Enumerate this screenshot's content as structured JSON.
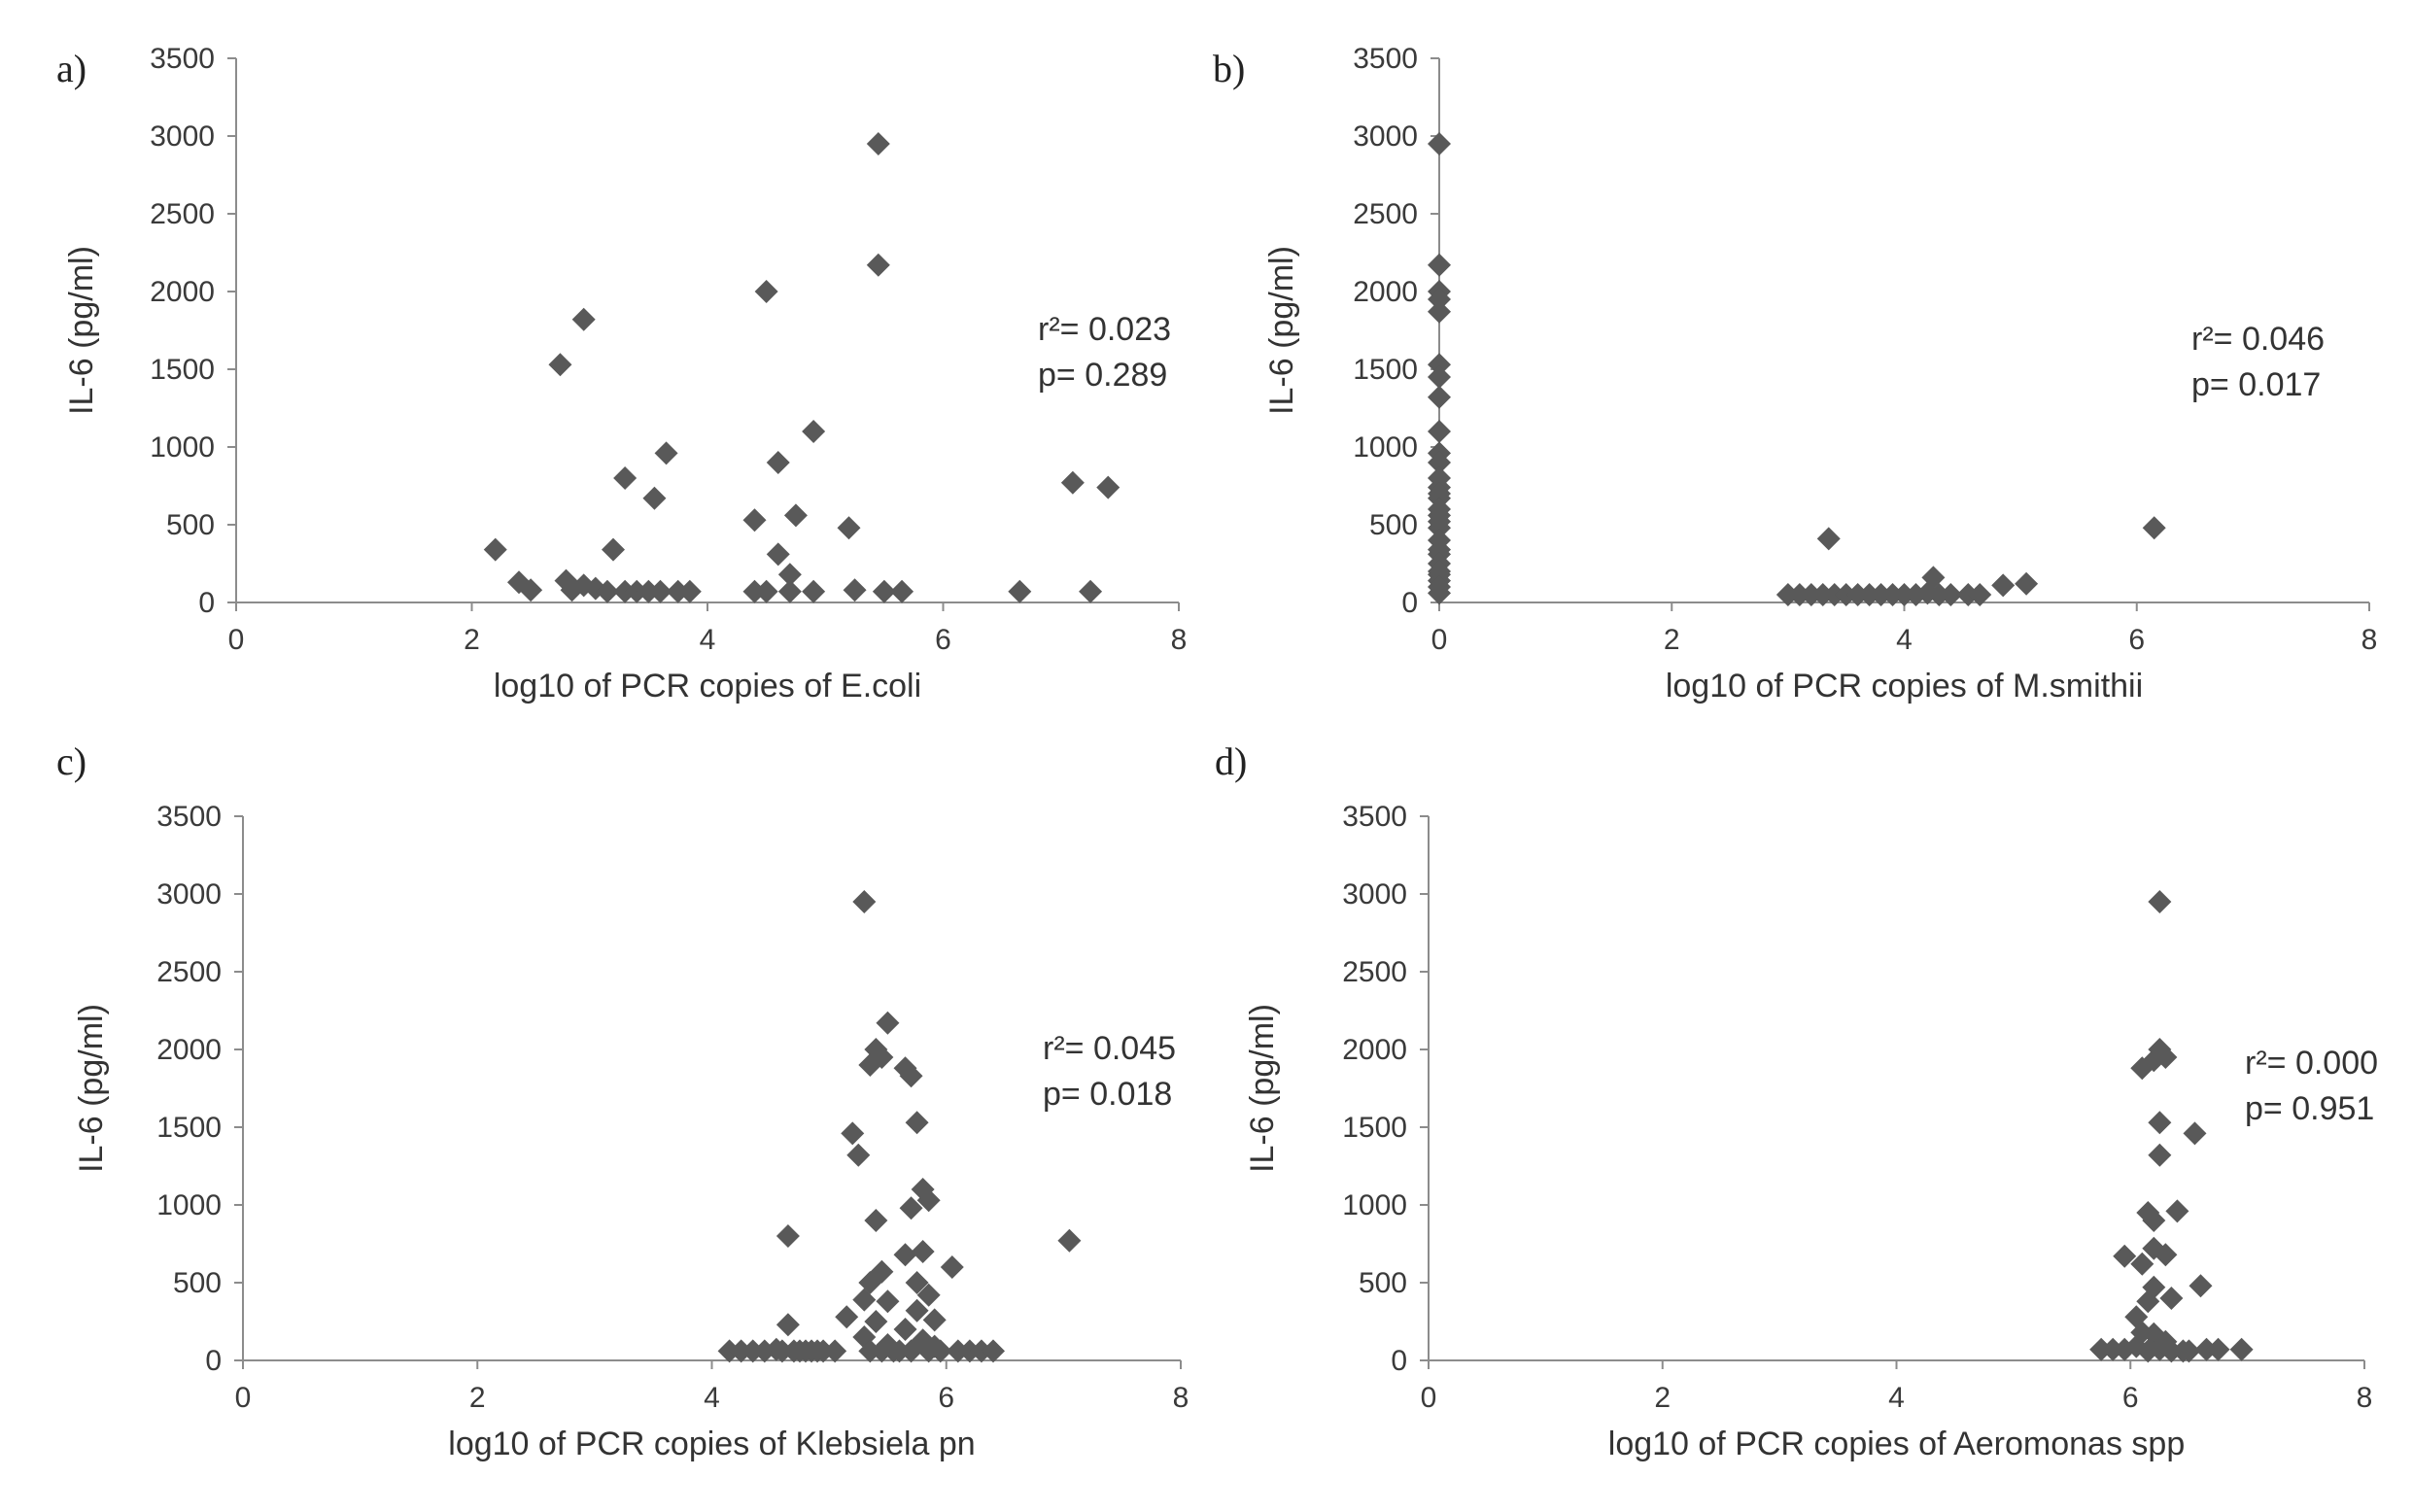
{
  "chart_data": [
    {
      "type": "scatter",
      "panel_label": "a)",
      "xlabel": "log10 of PCR copies of E.coli",
      "ylabel": "IL-6 (pg/ml)",
      "xlim": [
        0,
        8
      ],
      "ylim": [
        0,
        3500
      ],
      "x_ticks": [
        "0",
        "2",
        "4",
        "6",
        "8"
      ],
      "y_ticks": [
        "0",
        "500",
        "1000",
        "1500",
        "2000",
        "2500",
        "3000",
        "3500"
      ],
      "annotation": {
        "r2": "r²= 0.023",
        "p": "p= 0.289"
      },
      "marker_color": "#595959",
      "points": [
        [
          2.2,
          340
        ],
        [
          2.4,
          130
        ],
        [
          2.5,
          80
        ],
        [
          2.75,
          1530
        ],
        [
          2.8,
          140
        ],
        [
          2.85,
          80
        ],
        [
          2.95,
          1820
        ],
        [
          2.95,
          110
        ],
        [
          3.05,
          90
        ],
        [
          3.15,
          70
        ],
        [
          3.2,
          340
        ],
        [
          3.3,
          800
        ],
        [
          3.3,
          70
        ],
        [
          3.4,
          70
        ],
        [
          3.5,
          70
        ],
        [
          3.55,
          670
        ],
        [
          3.6,
          70
        ],
        [
          3.65,
          960
        ],
        [
          3.75,
          70
        ],
        [
          3.85,
          70
        ],
        [
          4.4,
          530
        ],
        [
          4.4,
          70
        ],
        [
          4.5,
          2000
        ],
        [
          4.5,
          70
        ],
        [
          4.6,
          900
        ],
        [
          4.6,
          310
        ],
        [
          4.7,
          180
        ],
        [
          4.7,
          70
        ],
        [
          4.75,
          560
        ],
        [
          4.9,
          1100
        ],
        [
          4.9,
          70
        ],
        [
          5.2,
          480
        ],
        [
          5.25,
          80
        ],
        [
          5.45,
          2950
        ],
        [
          5.45,
          2170
        ],
        [
          5.5,
          70
        ],
        [
          5.65,
          70
        ],
        [
          6.65,
          70
        ],
        [
          7.1,
          770
        ],
        [
          7.25,
          70
        ],
        [
          7.4,
          740
        ]
      ]
    },
    {
      "type": "scatter",
      "panel_label": "b)",
      "xlabel": "log10 of PCR copies of M.smithii",
      "ylabel": "IL-6 (pg/ml)",
      "xlim": [
        0,
        8
      ],
      "ylim": [
        0,
        3500
      ],
      "x_ticks": [
        "0",
        "2",
        "4",
        "6",
        "8"
      ],
      "y_ticks": [
        "0",
        "500",
        "1000",
        "1500",
        "2000",
        "2500",
        "3000",
        "3500"
      ],
      "annotation": {
        "r2": "r²= 0.046",
        "p": "p= 0.017"
      },
      "marker_color": "#595959",
      "points": [
        [
          0,
          2950
        ],
        [
          0,
          2170
        ],
        [
          0,
          2000
        ],
        [
          0,
          1950
        ],
        [
          0,
          1870
        ],
        [
          0,
          1530
        ],
        [
          0,
          1450
        ],
        [
          0,
          1320
        ],
        [
          0,
          1100
        ],
        [
          0,
          960
        ],
        [
          0,
          900
        ],
        [
          0,
          800
        ],
        [
          0,
          740
        ],
        [
          0,
          700
        ],
        [
          0,
          670
        ],
        [
          0,
          600
        ],
        [
          0,
          560
        ],
        [
          0,
          520
        ],
        [
          0,
          480
        ],
        [
          0,
          400
        ],
        [
          0,
          340
        ],
        [
          0,
          310
        ],
        [
          0,
          250
        ],
        [
          0,
          200
        ],
        [
          0,
          180
        ],
        [
          0,
          140
        ],
        [
          0,
          100
        ],
        [
          0,
          60
        ],
        [
          3.0,
          50
        ],
        [
          3.1,
          50
        ],
        [
          3.2,
          50
        ],
        [
          3.3,
          50
        ],
        [
          3.35,
          410
        ],
        [
          3.4,
          50
        ],
        [
          3.5,
          50
        ],
        [
          3.6,
          50
        ],
        [
          3.7,
          50
        ],
        [
          3.8,
          50
        ],
        [
          3.9,
          50
        ],
        [
          4.0,
          50
        ],
        [
          4.1,
          50
        ],
        [
          4.2,
          60
        ],
        [
          4.25,
          160
        ],
        [
          4.3,
          50
        ],
        [
          4.4,
          50
        ],
        [
          4.55,
          50
        ],
        [
          4.65,
          50
        ],
        [
          4.85,
          110
        ],
        [
          5.05,
          120
        ],
        [
          6.15,
          480
        ]
      ]
    },
    {
      "type": "scatter",
      "panel_label": "c)",
      "xlabel": "log10 of PCR copies of Klebsiela pn",
      "ylabel": "IL-6 (pg/ml)",
      "xlim": [
        0,
        8
      ],
      "ylim": [
        0,
        3500
      ],
      "x_ticks": [
        "0",
        "2",
        "4",
        "6",
        "8"
      ],
      "y_ticks": [
        "0",
        "500",
        "1000",
        "1500",
        "2000",
        "2500",
        "3000",
        "3500"
      ],
      "annotation": {
        "r2": "r²= 0.045",
        "p": "p= 0.018"
      },
      "marker_color": "#595959",
      "points": [
        [
          4.15,
          60
        ],
        [
          4.25,
          60
        ],
        [
          4.35,
          60
        ],
        [
          4.45,
          60
        ],
        [
          4.55,
          70
        ],
        [
          4.6,
          60
        ],
        [
          4.65,
          230
        ],
        [
          4.65,
          800
        ],
        [
          4.7,
          60
        ],
        [
          4.75,
          60
        ],
        [
          4.8,
          60
        ],
        [
          4.85,
          60
        ],
        [
          4.9,
          60
        ],
        [
          4.95,
          60
        ],
        [
          5.05,
          60
        ],
        [
          5.15,
          280
        ],
        [
          5.2,
          1460
        ],
        [
          5.25,
          1320
        ],
        [
          5.3,
          2950
        ],
        [
          5.3,
          390
        ],
        [
          5.3,
          150
        ],
        [
          5.35,
          1900
        ],
        [
          5.35,
          500
        ],
        [
          5.35,
          60
        ],
        [
          5.4,
          2000
        ],
        [
          5.4,
          900
        ],
        [
          5.4,
          250
        ],
        [
          5.45,
          1950
        ],
        [
          5.45,
          570
        ],
        [
          5.45,
          60
        ],
        [
          5.5,
          2170
        ],
        [
          5.5,
          380
        ],
        [
          5.5,
          100
        ],
        [
          5.55,
          60
        ],
        [
          5.6,
          60
        ],
        [
          5.65,
          1880
        ],
        [
          5.65,
          680
        ],
        [
          5.65,
          200
        ],
        [
          5.7,
          1830
        ],
        [
          5.7,
          980
        ],
        [
          5.7,
          60
        ],
        [
          5.75,
          1530
        ],
        [
          5.75,
          500
        ],
        [
          5.75,
          320
        ],
        [
          5.8,
          1100
        ],
        [
          5.8,
          700
        ],
        [
          5.8,
          130
        ],
        [
          5.85,
          1030
        ],
        [
          5.85,
          420
        ],
        [
          5.85,
          60
        ],
        [
          5.9,
          260
        ],
        [
          5.9,
          90
        ],
        [
          5.95,
          60
        ],
        [
          6.05,
          600
        ],
        [
          6.1,
          60
        ],
        [
          6.2,
          60
        ],
        [
          6.3,
          60
        ],
        [
          6.4,
          60
        ],
        [
          7.05,
          770
        ]
      ]
    },
    {
      "type": "scatter",
      "panel_label": "d)",
      "xlabel": "log10 of PCR copies of Aeromonas spp",
      "ylabel": "IL-6 (pg/ml)",
      "xlim": [
        0,
        8
      ],
      "ylim": [
        0,
        3500
      ],
      "x_ticks": [
        "0",
        "2",
        "4",
        "6",
        "8"
      ],
      "y_ticks": [
        "0",
        "500",
        "1000",
        "1500",
        "2000",
        "2500",
        "3000",
        "3500"
      ],
      "annotation": {
        "r2": "r²= 0.000",
        "p": "p= 0.951"
      },
      "marker_color": "#595959",
      "points": [
        [
          5.75,
          70
        ],
        [
          5.85,
          70
        ],
        [
          5.95,
          70
        ],
        [
          5.95,
          670
        ],
        [
          6.05,
          90
        ],
        [
          6.05,
          280
        ],
        [
          6.1,
          180
        ],
        [
          6.1,
          620
        ],
        [
          6.1,
          1880
        ],
        [
          6.15,
          950
        ],
        [
          6.15,
          60
        ],
        [
          6.15,
          380
        ],
        [
          6.2,
          1930
        ],
        [
          6.2,
          720
        ],
        [
          6.2,
          170
        ],
        [
          6.2,
          900
        ],
        [
          6.2,
          470
        ],
        [
          6.25,
          1320
        ],
        [
          6.25,
          1530
        ],
        [
          6.25,
          2950
        ],
        [
          6.25,
          2000
        ],
        [
          6.25,
          70
        ],
        [
          6.3,
          1950
        ],
        [
          6.3,
          680
        ],
        [
          6.3,
          120
        ],
        [
          6.35,
          400
        ],
        [
          6.35,
          60
        ],
        [
          6.4,
          960
        ],
        [
          6.45,
          60
        ],
        [
          6.5,
          60
        ],
        [
          6.55,
          1460
        ],
        [
          6.6,
          480
        ],
        [
          6.65,
          70
        ],
        [
          6.75,
          70
        ],
        [
          6.95,
          70
        ]
      ]
    }
  ]
}
